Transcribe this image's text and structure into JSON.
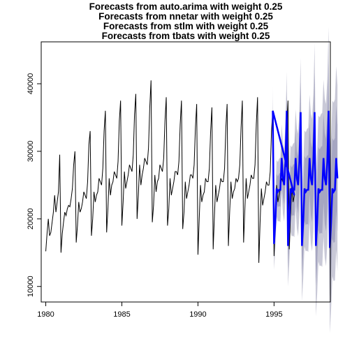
{
  "chart_data": {
    "type": "line",
    "title_lines": [
      "Forecasts from auto.arima with weight 0.25",
      "Forecasts from nnetar with weight 0.25",
      "Forecasts from stlm with weight 0.25",
      "Forecasts from tbats with weight 0.25"
    ],
    "xlabel": "",
    "ylabel": "",
    "xlim": [
      1979.7,
      1998.7
    ],
    "ylim": [
      7700,
      46200
    ],
    "x_ticks": [
      1980,
      1985,
      1990,
      1995
    ],
    "y_ticks": [
      10000,
      20000,
      30000,
      40000
    ],
    "grid": false,
    "legend": "none",
    "colors": {
      "history": "#000000",
      "forecast": "#0000ff",
      "interval_outer": "#c9c9d7",
      "interval_inner": "#a6a6c1"
    },
    "history": {
      "start": 1980.0,
      "frequency": 12,
      "values": [
        15200,
        17800,
        20000,
        17500,
        18000,
        19500,
        21000,
        23500,
        21000,
        22500,
        24000,
        29500,
        15000,
        17800,
        19500,
        21000,
        20500,
        21500,
        22000,
        21800,
        23000,
        24500,
        28000,
        30000,
        16500,
        19000,
        22500,
        21000,
        21500,
        22500,
        24000,
        23500,
        23000,
        25500,
        31000,
        33000,
        17500,
        20000,
        24000,
        22500,
        23500,
        24000,
        26000,
        25500,
        25000,
        27500,
        33000,
        36000,
        18000,
        21500,
        26000,
        23500,
        25000,
        25500,
        27000,
        26500,
        26000,
        28500,
        34500,
        37500,
        19000,
        22500,
        27000,
        24500,
        25500,
        26500,
        28000,
        27500,
        27000,
        29500,
        35500,
        38500,
        20000,
        23500,
        28000,
        25000,
        26500,
        27500,
        29000,
        28500,
        28000,
        30500,
        36500,
        40500,
        19500,
        22000,
        26500,
        24000,
        25500,
        26000,
        28000,
        27500,
        27000,
        29000,
        34500,
        38000,
        19000,
        21500,
        26000,
        23500,
        24500,
        25500,
        27000,
        27000,
        26500,
        28500,
        34000,
        37500,
        18500,
        21000,
        25500,
        23000,
        24000,
        25000,
        26500,
        26500,
        26000,
        28000,
        33500,
        37000,
        14700,
        20000,
        25000,
        22500,
        23500,
        24000,
        26000,
        25500,
        25500,
        27500,
        33000,
        36500,
        15500,
        20500,
        25000,
        22500,
        23500,
        24500,
        26000,
        25500,
        25500,
        27500,
        33500,
        37000,
        16000,
        21000,
        25500,
        23000,
        24000,
        24500,
        26000,
        25500,
        26000,
        28000,
        33500,
        37500,
        16500,
        21500,
        26000,
        23000,
        24000,
        25000,
        26500,
        26000,
        26000,
        28000,
        34000,
        38000,
        13500,
        19500,
        24500,
        22000,
        23000,
        24000,
        25500,
        25000,
        25000,
        27000,
        33000,
        36000,
        14500,
        20000,
        25000,
        22500,
        23500,
        24500,
        26000,
        25500,
        25500,
        27500,
        33500,
        37500,
        15500,
        20500,
        25000,
        22500,
        23500
      ]
    },
    "forecast": {
      "start": 1994.9167,
      "frequency": 12,
      "values": [
        36000,
        16300,
        19500,
        24500,
        24000,
        24300,
        24300,
        29000,
        26000,
        25000,
        28500,
        36000,
        16000,
        19500,
        24500,
        24000,
        24300,
        24300,
        29000,
        26000,
        25000,
        28500,
        35800,
        16000,
        19500,
        24500,
        24000,
        24300,
        24300,
        29000,
        26000,
        25000,
        28500,
        35800,
        16000,
        19500,
        24500,
        24000,
        24300,
        24300,
        29000,
        26000,
        25000,
        28500,
        36000,
        15700,
        19500,
        24500,
        24000,
        24300,
        29000,
        26000
      ],
      "lower80": [],
      "upper80": []
    },
    "interval_spread": {
      "inner_base": 1800,
      "inner_growth": 120,
      "outer_base": 3600,
      "outer_growth": 200
    }
  }
}
